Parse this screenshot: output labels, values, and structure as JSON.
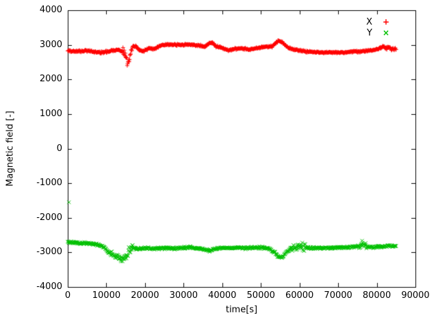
{
  "chart_data": {
    "type": "scatter",
    "title": "",
    "xlabel": "time[s]",
    "ylabel": "Magnetic field [-]",
    "xlim": [
      0,
      90000
    ],
    "ylim": [
      -4000,
      4000
    ],
    "xticks": [
      0,
      10000,
      20000,
      30000,
      40000,
      50000,
      60000,
      70000,
      80000,
      90000
    ],
    "yticks": [
      -4000,
      -3000,
      -2000,
      -1000,
      0,
      1000,
      2000,
      3000,
      4000
    ],
    "grid": false,
    "legend_position": "top-right-inside",
    "sample_step": 100,
    "t_end": 85000,
    "series": [
      {
        "name": "X",
        "color": "#ff0000",
        "marker": "plus",
        "legend_glyph": "+",
        "base_noise": 25,
        "noise_regions": [
          [
            14200,
            16800,
            140
          ],
          [
            8500,
            10000,
            45
          ],
          [
            81000,
            84500,
            55
          ]
        ],
        "outliers": [],
        "keypoints": [
          [
            0,
            2820
          ],
          [
            3000,
            2810
          ],
          [
            5000,
            2830
          ],
          [
            7000,
            2800
          ],
          [
            9000,
            2770
          ],
          [
            11000,
            2820
          ],
          [
            13000,
            2860
          ],
          [
            14500,
            2790
          ],
          [
            15300,
            2500
          ],
          [
            16000,
            2550
          ],
          [
            16800,
            2950
          ],
          [
            17500,
            2970
          ],
          [
            18500,
            2850
          ],
          [
            19500,
            2810
          ],
          [
            21000,
            2900
          ],
          [
            22500,
            2880
          ],
          [
            24000,
            2980
          ],
          [
            26000,
            3010
          ],
          [
            28000,
            3000
          ],
          [
            30000,
            3000
          ],
          [
            32000,
            3010
          ],
          [
            34000,
            2980
          ],
          [
            35500,
            2940
          ],
          [
            36500,
            3040
          ],
          [
            37500,
            3060
          ],
          [
            38500,
            2950
          ],
          [
            40000,
            2920
          ],
          [
            41500,
            2840
          ],
          [
            43000,
            2880
          ],
          [
            45000,
            2900
          ],
          [
            47000,
            2870
          ],
          [
            49000,
            2900
          ],
          [
            51000,
            2940
          ],
          [
            53000,
            2960
          ],
          [
            54500,
            3120
          ],
          [
            55500,
            3080
          ],
          [
            57000,
            2920
          ],
          [
            58500,
            2860
          ],
          [
            60000,
            2840
          ],
          [
            62000,
            2800
          ],
          [
            64000,
            2790
          ],
          [
            66000,
            2780
          ],
          [
            68000,
            2780
          ],
          [
            70000,
            2780
          ],
          [
            72000,
            2790
          ],
          [
            74000,
            2800
          ],
          [
            76000,
            2810
          ],
          [
            78000,
            2830
          ],
          [
            80000,
            2870
          ],
          [
            81500,
            2930
          ],
          [
            83000,
            2900
          ],
          [
            85000,
            2880
          ]
        ]
      },
      {
        "name": "Y",
        "color": "#00c000",
        "marker": "cross",
        "legend_glyph": "×",
        "base_noise": 30,
        "noise_regions": [
          [
            11000,
            15200,
            80
          ],
          [
            15300,
            16900,
            260
          ],
          [
            57500,
            61500,
            110
          ],
          [
            75000,
            77500,
            90
          ]
        ],
        "outliers": [
          [
            300,
            -1550
          ]
        ],
        "keypoints": [
          [
            0,
            -2700
          ],
          [
            2000,
            -2720
          ],
          [
            4000,
            -2730
          ],
          [
            6000,
            -2750
          ],
          [
            8000,
            -2780
          ],
          [
            9500,
            -2850
          ],
          [
            10500,
            -3000
          ],
          [
            11500,
            -3060
          ],
          [
            12500,
            -3120
          ],
          [
            13500,
            -3160
          ],
          [
            14500,
            -3180
          ],
          [
            15500,
            -3050
          ],
          [
            16200,
            -2900
          ],
          [
            17000,
            -2870
          ],
          [
            18000,
            -2900
          ],
          [
            20000,
            -2880
          ],
          [
            22000,
            -2890
          ],
          [
            24000,
            -2880
          ],
          [
            26000,
            -2870
          ],
          [
            28000,
            -2880
          ],
          [
            30000,
            -2870
          ],
          [
            32000,
            -2860
          ],
          [
            34000,
            -2890
          ],
          [
            36000,
            -2930
          ],
          [
            37000,
            -2960
          ],
          [
            38000,
            -2900
          ],
          [
            40000,
            -2870
          ],
          [
            42000,
            -2880
          ],
          [
            44000,
            -2860
          ],
          [
            46000,
            -2880
          ],
          [
            48000,
            -2860
          ],
          [
            50000,
            -2860
          ],
          [
            52000,
            -2880
          ],
          [
            53500,
            -3000
          ],
          [
            54500,
            -3130
          ],
          [
            55500,
            -3150
          ],
          [
            56500,
            -3000
          ],
          [
            58000,
            -2880
          ],
          [
            59500,
            -2820
          ],
          [
            61000,
            -2850
          ],
          [
            63000,
            -2870
          ],
          [
            65000,
            -2870
          ],
          [
            67000,
            -2880
          ],
          [
            69000,
            -2870
          ],
          [
            71000,
            -2860
          ],
          [
            73000,
            -2850
          ],
          [
            75000,
            -2830
          ],
          [
            76200,
            -2760
          ],
          [
            77500,
            -2830
          ],
          [
            79000,
            -2850
          ],
          [
            81000,
            -2830
          ],
          [
            83000,
            -2810
          ],
          [
            85000,
            -2820
          ]
        ]
      }
    ]
  }
}
